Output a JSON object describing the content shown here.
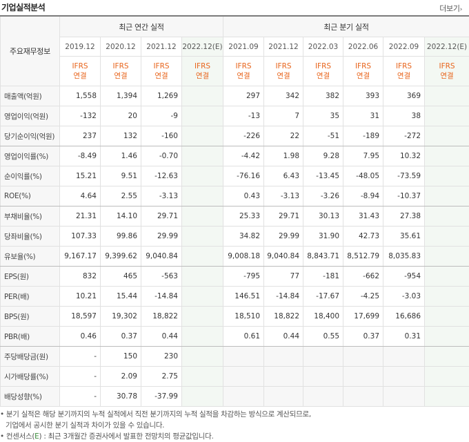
{
  "header": {
    "title": "기업실적분석",
    "more_label": "더보기",
    "more_arrow": "›"
  },
  "table": {
    "label_header": "주요재무정보",
    "annual_header": "최근 연간 실적",
    "quarterly_header": "최근 분기 실적",
    "periods": [
      "2019.12",
      "2020.12",
      "2021.12",
      "2022.12(E)",
      "2021.09",
      "2021.12",
      "2022.03",
      "2022.06",
      "2022.09",
      "2022.12(E)"
    ],
    "ifrs_top": "IFRS",
    "ifrs_bottom": "연결",
    "rows": [
      {
        "label": "매출액(억원)",
        "values": [
          "1,558",
          "1,394",
          "1,269",
          "",
          "297",
          "342",
          "382",
          "393",
          "369",
          ""
        ]
      },
      {
        "label": "영업이익(억원)",
        "values": [
          "-132",
          "20",
          "-9",
          "",
          "-13",
          "7",
          "35",
          "31",
          "38",
          ""
        ]
      },
      {
        "label": "당기순이익(억원)",
        "values": [
          "237",
          "132",
          "-160",
          "",
          "-226",
          "22",
          "-51",
          "-189",
          "-272",
          ""
        ]
      },
      {
        "label": "영업이익률(%)",
        "values": [
          "-8.49",
          "1.46",
          "-0.70",
          "",
          "-4.42",
          "1.98",
          "9.28",
          "7.95",
          "10.32",
          ""
        ]
      },
      {
        "label": "순이익률(%)",
        "values": [
          "15.21",
          "9.51",
          "-12.63",
          "",
          "-76.16",
          "6.43",
          "-13.45",
          "-48.05",
          "-73.59",
          ""
        ]
      },
      {
        "label": "ROE(%)",
        "values": [
          "4.64",
          "2.55",
          "-3.13",
          "",
          "0.43",
          "-3.13",
          "-3.26",
          "-8.94",
          "-10.37",
          ""
        ]
      },
      {
        "label": "부채비율(%)",
        "values": [
          "21.31",
          "14.10",
          "29.71",
          "",
          "25.33",
          "29.71",
          "30.13",
          "31.43",
          "27.38",
          ""
        ]
      },
      {
        "label": "당좌비율(%)",
        "values": [
          "107.33",
          "99.86",
          "29.99",
          "",
          "34.82",
          "29.99",
          "31.90",
          "42.73",
          "35.61",
          ""
        ]
      },
      {
        "label": "유보율(%)",
        "values": [
          "9,167.17",
          "9,399.62",
          "9,040.84",
          "",
          "9,008.18",
          "9,040.84",
          "8,843.71",
          "8,512.79",
          "8,035.83",
          ""
        ]
      },
      {
        "label": "EPS(원)",
        "values": [
          "832",
          "465",
          "-563",
          "",
          "-795",
          "77",
          "-181",
          "-662",
          "-954",
          ""
        ]
      },
      {
        "label": "PER(배)",
        "values": [
          "10.21",
          "15.44",
          "-14.84",
          "",
          "146.51",
          "-14.84",
          "-17.67",
          "-4.25",
          "-3.03",
          ""
        ]
      },
      {
        "label": "BPS(원)",
        "values": [
          "18,597",
          "19,302",
          "18,822",
          "",
          "18,510",
          "18,822",
          "18,400",
          "17,699",
          "16,686",
          ""
        ]
      },
      {
        "label": "PBR(배)",
        "values": [
          "0.46",
          "0.37",
          "0.44",
          "",
          "0.61",
          "0.44",
          "0.55",
          "0.37",
          "0.31",
          ""
        ]
      },
      {
        "label": "주당배당금(원)",
        "values": [
          "-",
          "150",
          "230",
          "",
          "",
          "",
          "",
          "",
          "",
          ""
        ]
      },
      {
        "label": "시가배당률(%)",
        "values": [
          "-",
          "2.09",
          "2.75",
          "",
          "",
          "",
          "",
          "",
          "",
          ""
        ]
      },
      {
        "label": "배당성향(%)",
        "values": [
          "-",
          "30.78",
          "-37.99",
          "",
          "",
          "",
          "",
          "",
          "",
          ""
        ]
      }
    ]
  },
  "notes": {
    "line1": "• 분기 실적은 해당 분기까지의 누적 실적에서 직전 분기까지의 누적 실적을 차감하는 방식으로 계산되므로,",
    "line2": "기업에서 공시한 분기 실적과 차이가 있을 수 있습니다.",
    "line3_prefix": "• 컨센서스(",
    "line3_e": "E",
    "line3_suffix": ") : 최근 3개월간 증권사에서 발표한 전망치의 평균값입니다."
  },
  "colors": {
    "negative": "#e01010",
    "ifrs": "#e8641b",
    "estimate_bg": "#f3f8f3",
    "label_bg": "#f7f7f7"
  }
}
